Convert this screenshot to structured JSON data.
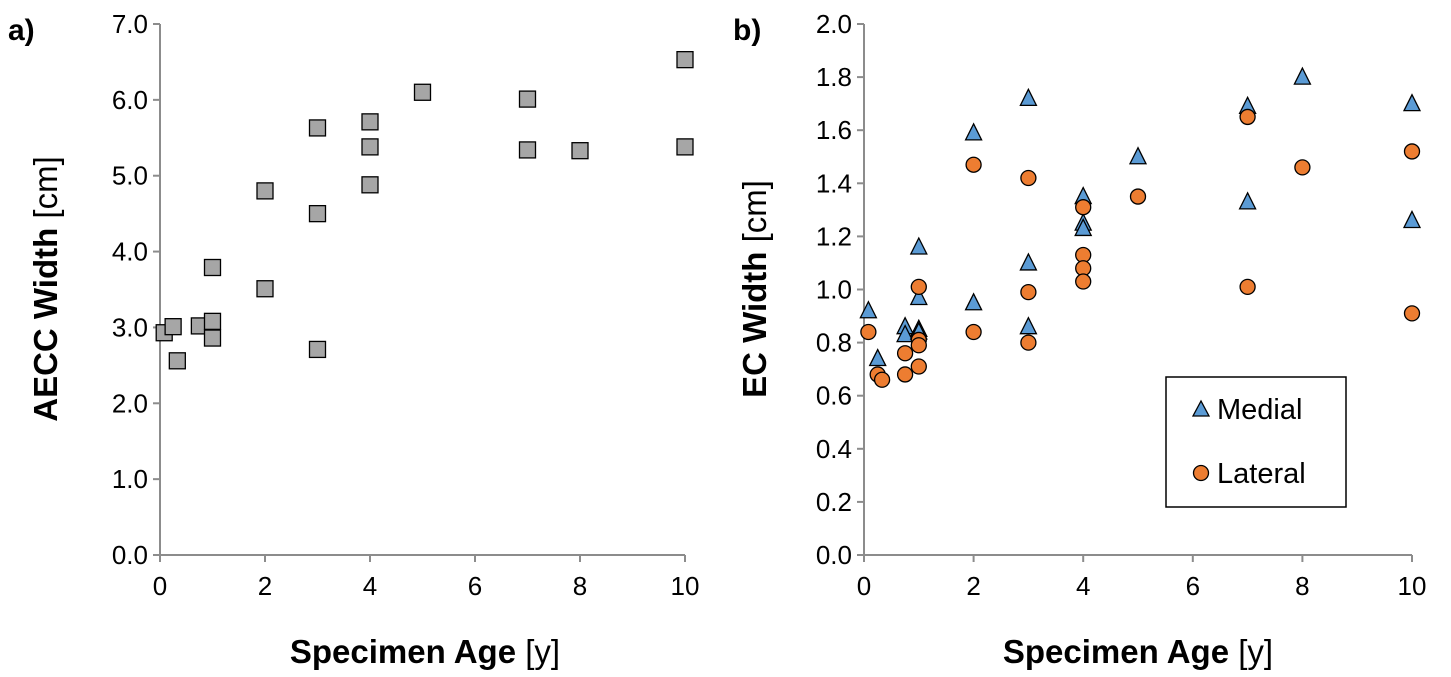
{
  "chart_data": [
    {
      "panel_label": "a)",
      "type": "scatter",
      "xlabel": {
        "bold": "Specimen Age",
        "unit": "[y]"
      },
      "ylabel": {
        "bold": "AECC Width",
        "unit": "[cm]"
      },
      "xlim": [
        0,
        10
      ],
      "ylim": [
        0,
        7
      ],
      "x_ticks": [
        "0",
        "2",
        "4",
        "6",
        "8",
        "10"
      ],
      "y_ticks": [
        "0.0",
        "1.0",
        "2.0",
        "3.0",
        "4.0",
        "5.0",
        "6.0",
        "7.0"
      ],
      "grid": false,
      "series": [
        {
          "marker": "square",
          "color": "#a6a6a6",
          "points": [
            {
              "x": 0.08,
              "y": 2.93
            },
            {
              "x": 0.25,
              "y": 3.01
            },
            {
              "x": 0.33,
              "y": 2.56
            },
            {
              "x": 0.75,
              "y": 3.02
            },
            {
              "x": 1.0,
              "y": 3.08
            },
            {
              "x": 1.0,
              "y": 2.86
            },
            {
              "x": 1.0,
              "y": 3.79
            },
            {
              "x": 2.0,
              "y": 3.51
            },
            {
              "x": 2.0,
              "y": 4.8
            },
            {
              "x": 3.0,
              "y": 2.71
            },
            {
              "x": 3.0,
              "y": 4.5
            },
            {
              "x": 3.0,
              "y": 5.63
            },
            {
              "x": 4.0,
              "y": 4.88
            },
            {
              "x": 4.0,
              "y": 5.38
            },
            {
              "x": 4.0,
              "y": 5.71
            },
            {
              "x": 5.0,
              "y": 6.1
            },
            {
              "x": 7.0,
              "y": 6.01
            },
            {
              "x": 7.0,
              "y": 5.34
            },
            {
              "x": 8.0,
              "y": 5.33
            },
            {
              "x": 10.0,
              "y": 6.53
            },
            {
              "x": 10.0,
              "y": 5.38
            }
          ]
        }
      ]
    },
    {
      "panel_label": "b)",
      "type": "scatter",
      "xlabel": {
        "bold": "Specimen Age",
        "unit": "[y]"
      },
      "ylabel": {
        "bold": "EC Width",
        "unit": "[cm]"
      },
      "xlim": [
        0,
        10
      ],
      "ylim": [
        0,
        2
      ],
      "x_ticks": [
        "0",
        "2",
        "4",
        "6",
        "8",
        "10"
      ],
      "y_ticks": [
        "0.0",
        "0.2",
        "0.4",
        "0.6",
        "0.8",
        "1.0",
        "1.2",
        "1.4",
        "1.6",
        "1.8",
        "2.0"
      ],
      "grid": false,
      "legend_position": "bottom-right",
      "series": [
        {
          "name": "Medial",
          "marker": "triangle",
          "color": "#5b9bd5",
          "points": [
            {
              "x": 0.08,
              "y": 0.92
            },
            {
              "x": 0.25,
              "y": 0.74
            },
            {
              "x": 0.75,
              "y": 0.86
            },
            {
              "x": 0.75,
              "y": 0.83
            },
            {
              "x": 1.0,
              "y": 1.16
            },
            {
              "x": 1.0,
              "y": 0.97
            },
            {
              "x": 1.0,
              "y": 0.85
            },
            {
              "x": 1.0,
              "y": 0.84
            },
            {
              "x": 2.0,
              "y": 1.59
            },
            {
              "x": 2.0,
              "y": 0.95
            },
            {
              "x": 3.0,
              "y": 1.72
            },
            {
              "x": 3.0,
              "y": 1.1
            },
            {
              "x": 3.0,
              "y": 0.86
            },
            {
              "x": 4.0,
              "y": 1.35
            },
            {
              "x": 4.0,
              "y": 1.25
            },
            {
              "x": 4.0,
              "y": 1.23
            },
            {
              "x": 5.0,
              "y": 1.5
            },
            {
              "x": 7.0,
              "y": 1.69
            },
            {
              "x": 7.0,
              "y": 1.33
            },
            {
              "x": 8.0,
              "y": 1.8
            },
            {
              "x": 10.0,
              "y": 1.7
            },
            {
              "x": 10.0,
              "y": 1.26
            }
          ]
        },
        {
          "name": "Lateral",
          "marker": "circle",
          "color": "#ed7d31",
          "points": [
            {
              "x": 0.08,
              "y": 0.84
            },
            {
              "x": 0.25,
              "y": 0.68
            },
            {
              "x": 0.33,
              "y": 0.66
            },
            {
              "x": 0.75,
              "y": 0.76
            },
            {
              "x": 0.75,
              "y": 0.68
            },
            {
              "x": 1.0,
              "y": 1.01
            },
            {
              "x": 1.0,
              "y": 0.81
            },
            {
              "x": 1.0,
              "y": 0.79
            },
            {
              "x": 1.0,
              "y": 0.71
            },
            {
              "x": 2.0,
              "y": 1.47
            },
            {
              "x": 2.0,
              "y": 0.84
            },
            {
              "x": 3.0,
              "y": 1.42
            },
            {
              "x": 3.0,
              "y": 0.99
            },
            {
              "x": 3.0,
              "y": 0.8
            },
            {
              "x": 4.0,
              "y": 1.31
            },
            {
              "x": 4.0,
              "y": 1.13
            },
            {
              "x": 4.0,
              "y": 1.08
            },
            {
              "x": 4.0,
              "y": 1.03
            },
            {
              "x": 5.0,
              "y": 1.35
            },
            {
              "x": 7.0,
              "y": 1.65
            },
            {
              "x": 7.0,
              "y": 1.01
            },
            {
              "x": 8.0,
              "y": 1.46
            },
            {
              "x": 10.0,
              "y": 1.52
            },
            {
              "x": 10.0,
              "y": 0.91
            }
          ]
        }
      ]
    }
  ]
}
